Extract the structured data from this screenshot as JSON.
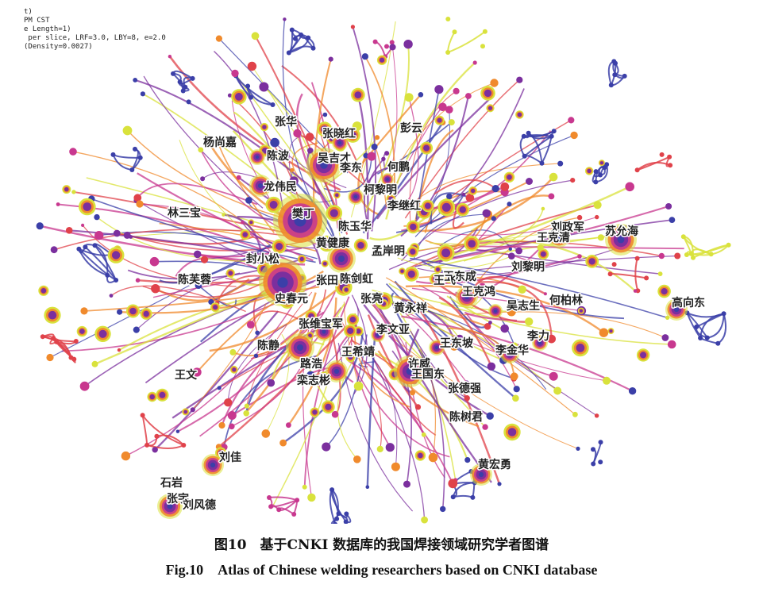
{
  "figure": {
    "meta_lines": [
      "t)",
      "PM CST",
      "",
      "e Length=1)",
      " per slice, LRF=3.0, LBY=8, e=2.0",
      "(Density=0.0027)"
    ],
    "researchers": [
      "张华",
      "张晓红",
      "彭云",
      "杨尚嘉",
      "陈波",
      "吴吉才",
      "李东",
      "何鹏",
      "龙伟民",
      "柯黎明",
      "李继红",
      "林三宝",
      "樊丁",
      "陈玉华",
      "黄健康",
      "孟岸明",
      "封小松",
      "刘政军",
      "王克清",
      "苏允海",
      "刘黎明",
      "陈芙蓉",
      "王东成",
      "张田",
      "陈剑虹",
      "王飞",
      "王克鸿",
      "史春元",
      "张亮",
      "黄永祥",
      "吴志生",
      "何柏林",
      "高向东",
      "张维宝军",
      "李文亚",
      "王东坡",
      "李力",
      "陈静",
      "李金华",
      "路浩",
      "王希靖",
      "许威",
      "王国东",
      "王文",
      "栾志彬",
      "张德强",
      "陈树君",
      "刘佳",
      "黄宏勇",
      "石岩",
      "张宇",
      "刘风德"
    ],
    "colors": {
      "purple": "#7b2f9e",
      "navy": "#3b3fa8",
      "yellow": "#d9e23c",
      "orange": "#f08a2c",
      "magenta": "#c8388f",
      "red": "#e0424a"
    }
  },
  "caption": {
    "cn": "图10　基于CNKI 数据库的我国焊接领域研究学者图谱",
    "en": "Fig.10　Atlas of Chinese welding researchers based on CNKI database"
  }
}
